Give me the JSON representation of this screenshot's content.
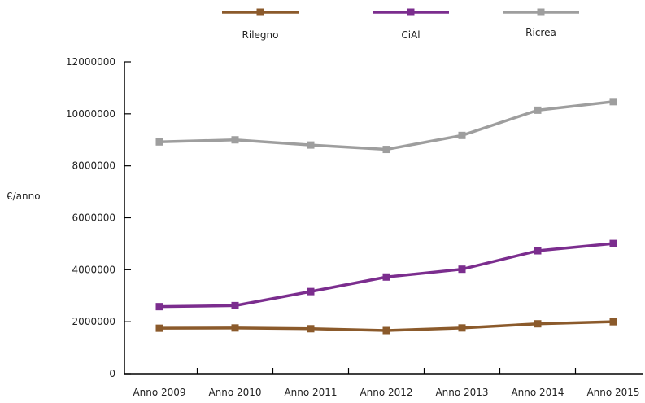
{
  "chart_data": {
    "type": "line",
    "title": "",
    "xlabel": "",
    "ylabel": "€/anno",
    "ylim": [
      0,
      12000000
    ],
    "yticks": [
      0,
      2000000,
      4000000,
      6000000,
      8000000,
      10000000,
      12000000
    ],
    "ytick_labels": [
      "0",
      "2000000",
      "4000000",
      "6000000",
      "8000000",
      "10000000",
      "12000000"
    ],
    "categories": [
      "Anno 2009",
      "Anno 2010",
      "Anno 2011",
      "Anno 2012",
      "Anno 2013",
      "Anno 2014",
      "Anno 2015"
    ],
    "grid": false,
    "legend_position": "top",
    "series": [
      {
        "name": "Rilegno",
        "color": "#8B5A2B",
        "values": [
          1750000,
          1760000,
          1730000,
          1660000,
          1760000,
          1920000,
          2000000
        ]
      },
      {
        "name": "CiAl",
        "color": "#7B2D8E",
        "values": [
          2580000,
          2620000,
          3160000,
          3720000,
          4020000,
          4730000,
          5010000
        ]
      },
      {
        "name": "Ricrea",
        "color": "#9E9E9E",
        "values": [
          8920000,
          9000000,
          8800000,
          8630000,
          9170000,
          10140000,
          10470000
        ]
      }
    ]
  }
}
